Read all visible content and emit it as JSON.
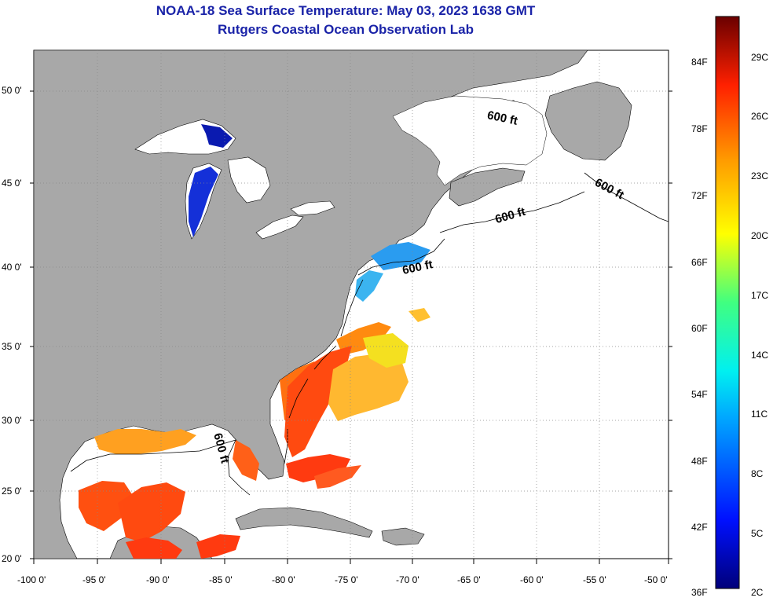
{
  "title": "NOAA-18 Sea Surface Temperature:  May 03, 2023 1638 GMT",
  "subtitle": "Rutgers Coastal Ocean Observation Lab",
  "map": {
    "lon_ticks": [
      "-100 0'",
      "-95 0'",
      "-90 0'",
      "-85 0'",
      "-80 0'",
      "-75 0'",
      "-70 0'",
      "-65 0'",
      "-60 0'",
      "-55 0'",
      "-50 0'"
    ],
    "lat_ticks": [
      "50 0'",
      "45 0'",
      "40 0'",
      "35 0'",
      "30 0'",
      "25 0'",
      "20 0'"
    ],
    "contour_label": "600 ft",
    "colors": {
      "land": "#a8a8a8",
      "water": "#ffffff",
      "grid": "#888888"
    }
  },
  "colorbar": {
    "f_labels": [
      "84F",
      "78F",
      "72F",
      "66F",
      "60F",
      "54F",
      "48F",
      "42F",
      "36F"
    ],
    "c_labels": [
      "29C",
      "26C",
      "23C",
      "20C",
      "17C",
      "14C",
      "11C",
      "8C",
      "5C",
      "2C"
    ]
  }
}
